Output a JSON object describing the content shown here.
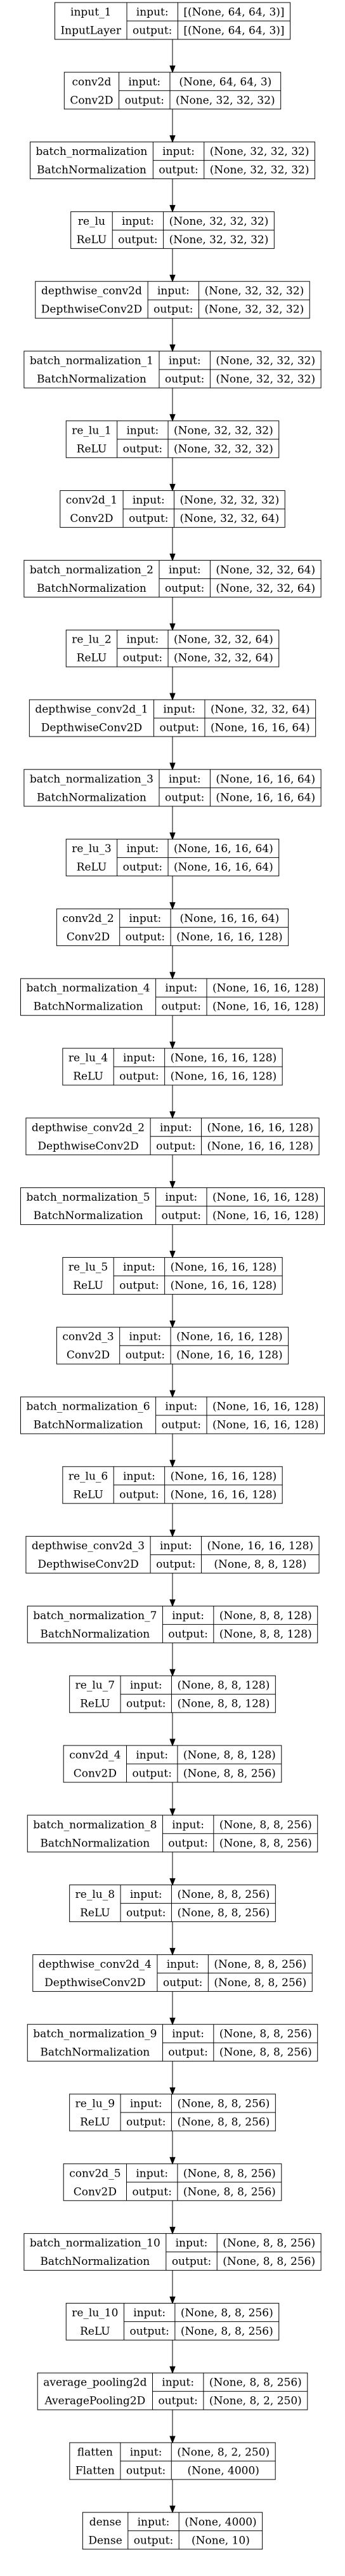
{
  "diagram": {
    "type": "keras-model-plot",
    "columns": [
      "input:",
      "output:"
    ],
    "edge_style": "arrow-down",
    "layers": [
      {
        "name": "input_1",
        "class": "InputLayer",
        "input": "[(None, 64, 64, 3)]",
        "output": "[(None, 64, 64, 3)]"
      },
      {
        "name": "conv2d",
        "class": "Conv2D",
        "input": "(None, 64, 64, 3)",
        "output": "(None, 32, 32, 32)"
      },
      {
        "name": "batch_normalization",
        "class": "BatchNormalization",
        "input": "(None, 32, 32, 32)",
        "output": "(None, 32, 32, 32)"
      },
      {
        "name": "re_lu",
        "class": "ReLU",
        "input": "(None, 32, 32, 32)",
        "output": "(None, 32, 32, 32)"
      },
      {
        "name": "depthwise_conv2d",
        "class": "DepthwiseConv2D",
        "input": "(None, 32, 32, 32)",
        "output": "(None, 32, 32, 32)"
      },
      {
        "name": "batch_normalization_1",
        "class": "BatchNormalization",
        "input": "(None, 32, 32, 32)",
        "output": "(None, 32, 32, 32)"
      },
      {
        "name": "re_lu_1",
        "class": "ReLU",
        "input": "(None, 32, 32, 32)",
        "output": "(None, 32, 32, 32)"
      },
      {
        "name": "conv2d_1",
        "class": "Conv2D",
        "input": "(None, 32, 32, 32)",
        "output": "(None, 32, 32, 64)"
      },
      {
        "name": "batch_normalization_2",
        "class": "BatchNormalization",
        "input": "(None, 32, 32, 64)",
        "output": "(None, 32, 32, 64)"
      },
      {
        "name": "re_lu_2",
        "class": "ReLU",
        "input": "(None, 32, 32, 64)",
        "output": "(None, 32, 32, 64)"
      },
      {
        "name": "depthwise_conv2d_1",
        "class": "DepthwiseConv2D",
        "input": "(None, 32, 32, 64)",
        "output": "(None, 16, 16, 64)"
      },
      {
        "name": "batch_normalization_3",
        "class": "BatchNormalization",
        "input": "(None, 16, 16, 64)",
        "output": "(None, 16, 16, 64)"
      },
      {
        "name": "re_lu_3",
        "class": "ReLU",
        "input": "(None, 16, 16, 64)",
        "output": "(None, 16, 16, 64)"
      },
      {
        "name": "conv2d_2",
        "class": "Conv2D",
        "input": "(None, 16, 16, 64)",
        "output": "(None, 16, 16, 128)"
      },
      {
        "name": "batch_normalization_4",
        "class": "BatchNormalization",
        "input": "(None, 16, 16, 128)",
        "output": "(None, 16, 16, 128)"
      },
      {
        "name": "re_lu_4",
        "class": "ReLU",
        "input": "(None, 16, 16, 128)",
        "output": "(None, 16, 16, 128)"
      },
      {
        "name": "depthwise_conv2d_2",
        "class": "DepthwiseConv2D",
        "input": "(None, 16, 16, 128)",
        "output": "(None, 16, 16, 128)"
      },
      {
        "name": "batch_normalization_5",
        "class": "BatchNormalization",
        "input": "(None, 16, 16, 128)",
        "output": "(None, 16, 16, 128)"
      },
      {
        "name": "re_lu_5",
        "class": "ReLU",
        "input": "(None, 16, 16, 128)",
        "output": "(None, 16, 16, 128)"
      },
      {
        "name": "conv2d_3",
        "class": "Conv2D",
        "input": "(None, 16, 16, 128)",
        "output": "(None, 16, 16, 128)"
      },
      {
        "name": "batch_normalization_6",
        "class": "BatchNormalization",
        "input": "(None, 16, 16, 128)",
        "output": "(None, 16, 16, 128)"
      },
      {
        "name": "re_lu_6",
        "class": "ReLU",
        "input": "(None, 16, 16, 128)",
        "output": "(None, 16, 16, 128)"
      },
      {
        "name": "depthwise_conv2d_3",
        "class": "DepthwiseConv2D",
        "input": "(None, 16, 16, 128)",
        "output": "(None, 8, 8, 128)"
      },
      {
        "name": "batch_normalization_7",
        "class": "BatchNormalization",
        "input": "(None, 8, 8, 128)",
        "output": "(None, 8, 8, 128)"
      },
      {
        "name": "re_lu_7",
        "class": "ReLU",
        "input": "(None, 8, 8, 128)",
        "output": "(None, 8, 8, 128)"
      },
      {
        "name": "conv2d_4",
        "class": "Conv2D",
        "input": "(None, 8, 8, 128)",
        "output": "(None, 8, 8, 256)"
      },
      {
        "name": "batch_normalization_8",
        "class": "BatchNormalization",
        "input": "(None, 8, 8, 256)",
        "output": "(None, 8, 8, 256)"
      },
      {
        "name": "re_lu_8",
        "class": "ReLU",
        "input": "(None, 8, 8, 256)",
        "output": "(None, 8, 8, 256)"
      },
      {
        "name": "depthwise_conv2d_4",
        "class": "DepthwiseConv2D",
        "input": "(None, 8, 8, 256)",
        "output": "(None, 8, 8, 256)"
      },
      {
        "name": "batch_normalization_9",
        "class": "BatchNormalization",
        "input": "(None, 8, 8, 256)",
        "output": "(None, 8, 8, 256)"
      },
      {
        "name": "re_lu_9",
        "class": "ReLU",
        "input": "(None, 8, 8, 256)",
        "output": "(None, 8, 8, 256)"
      },
      {
        "name": "conv2d_5",
        "class": "Conv2D",
        "input": "(None, 8, 8, 256)",
        "output": "(None, 8, 8, 256)"
      },
      {
        "name": "batch_normalization_10",
        "class": "BatchNormalization",
        "input": "(None, 8, 8, 256)",
        "output": "(None, 8, 8, 256)"
      },
      {
        "name": "re_lu_10",
        "class": "ReLU",
        "input": "(None, 8, 8, 256)",
        "output": "(None, 8, 8, 256)"
      },
      {
        "name": "average_pooling2d",
        "class": "AveragePooling2D",
        "input": "(None, 8, 8, 256)",
        "output": "(None, 8, 2, 250)"
      },
      {
        "name": "flatten",
        "class": "Flatten",
        "input": "(None, 8, 2, 250)",
        "output": "(None, 4000)"
      },
      {
        "name": "dense",
        "class": "Dense",
        "input": "(None, 4000)",
        "output": "(None, 10)"
      }
    ]
  }
}
